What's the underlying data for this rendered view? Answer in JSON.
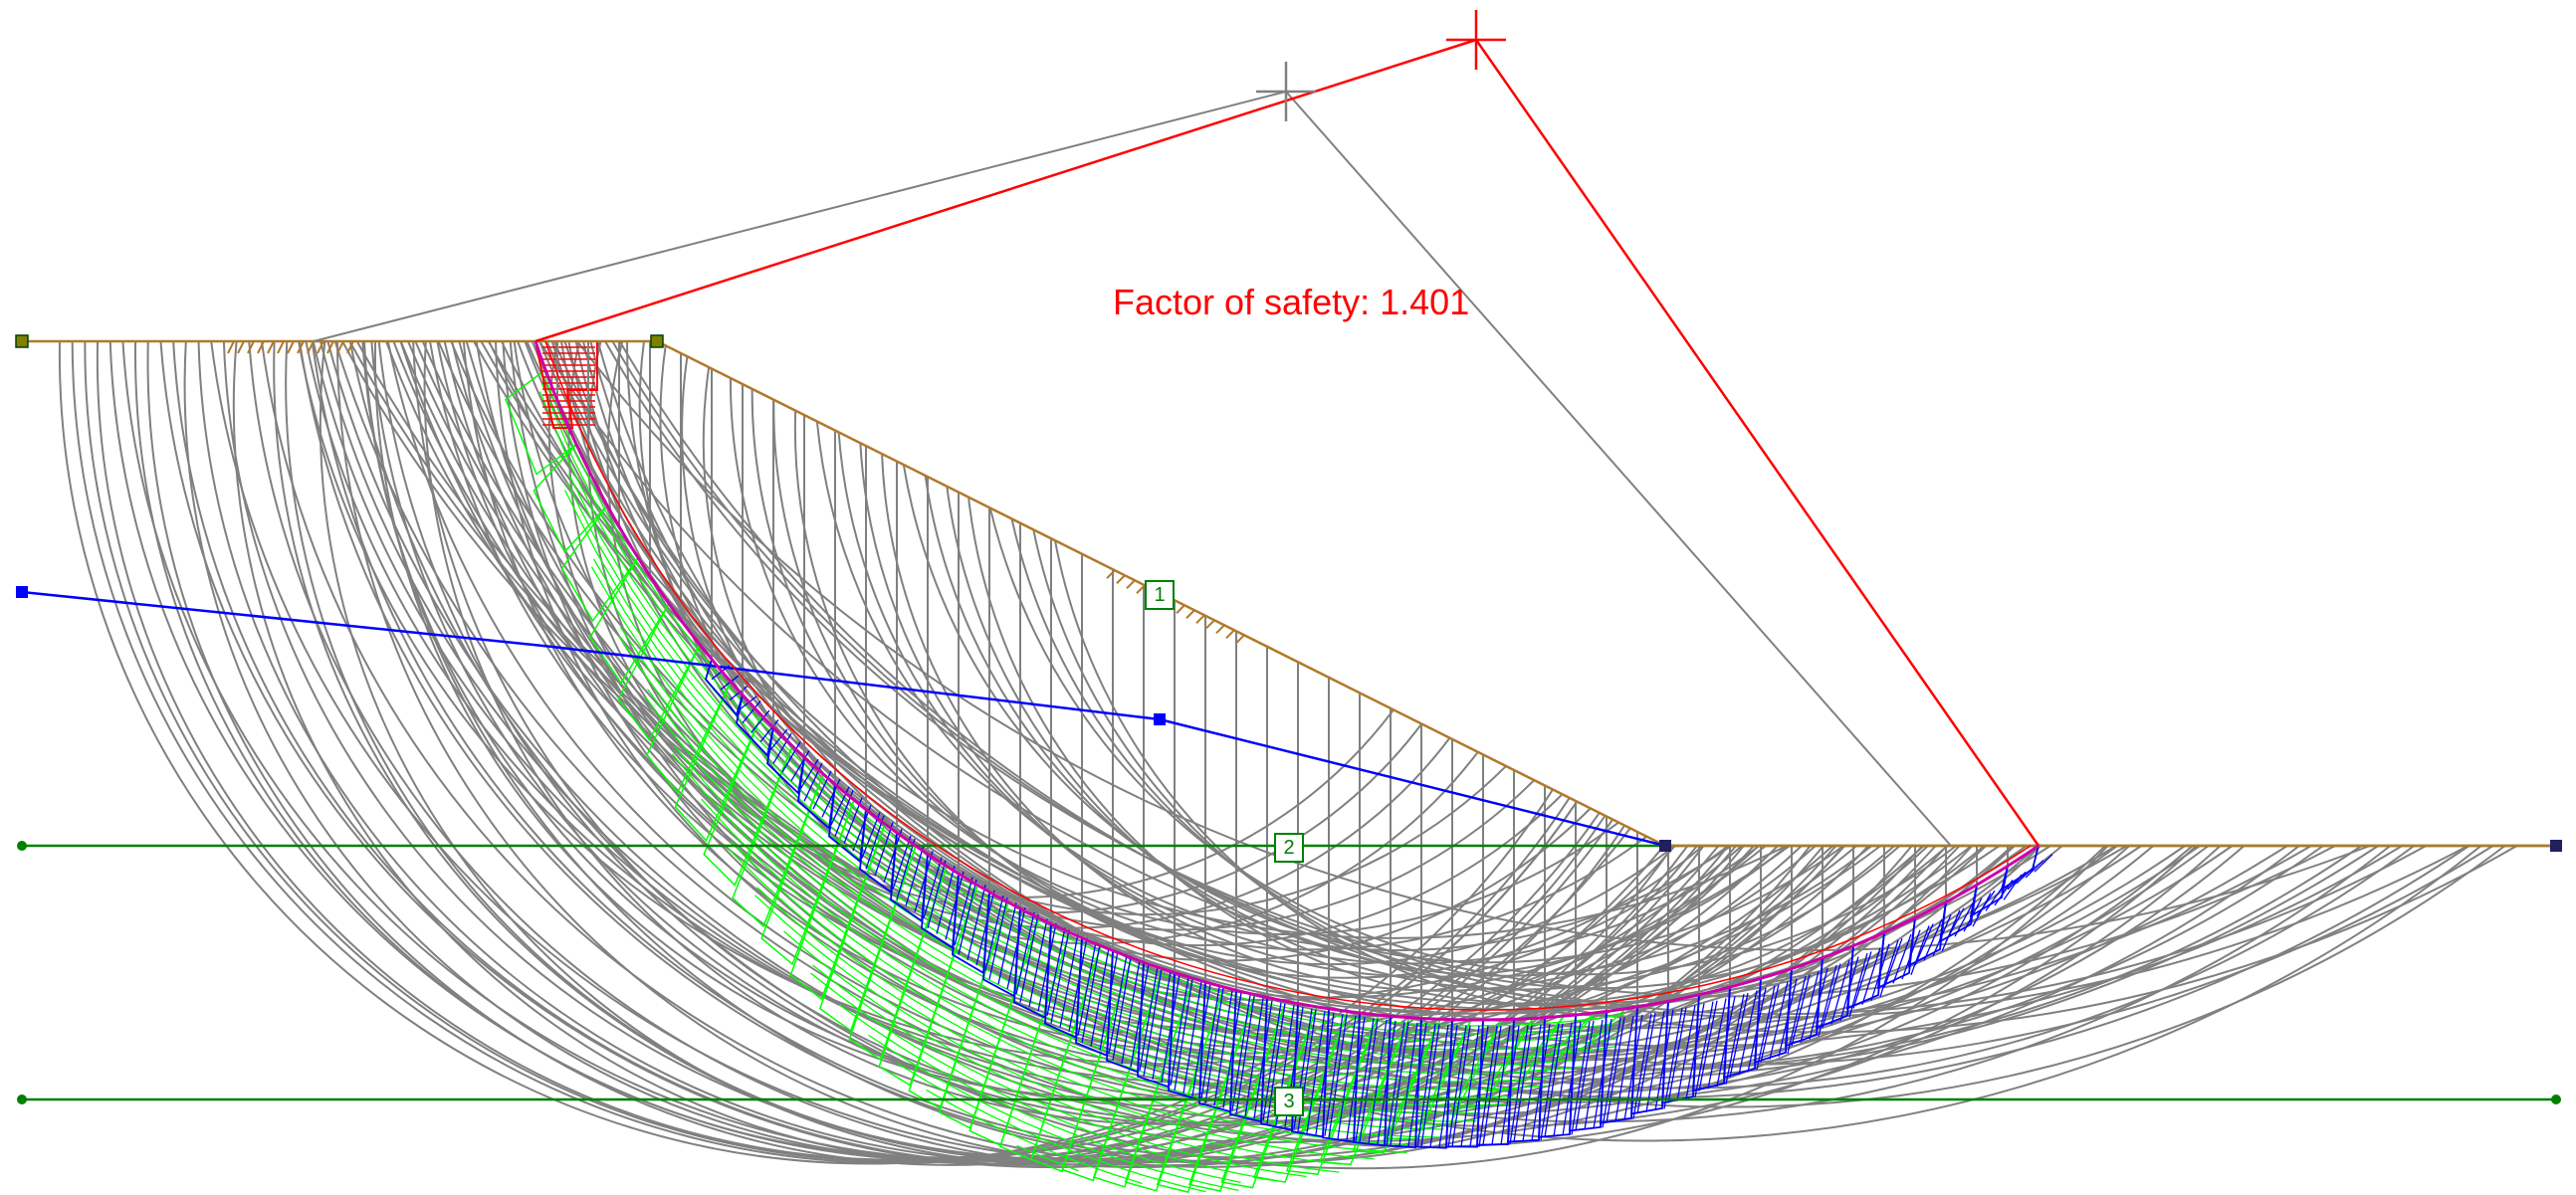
{
  "annotation": {
    "factor_of_safety_label": "Factor of safety:",
    "factor_of_safety_value": "1.401"
  },
  "regions": [
    {
      "label": "1"
    },
    {
      "label": "2"
    },
    {
      "label": "3"
    }
  ],
  "colors": {
    "ground_surface": "#b07a2a",
    "critical_surface": "#ff0000",
    "critical_slip": "#cc00aa",
    "trial_surfaces": "#808080",
    "water_table": "#0000ff",
    "layer_boundary": "#008000",
    "pore_pressure_hatch": "#0000ff",
    "resistance_hatch": "#00ff00",
    "tension_crack_hatch": "#ff0000"
  },
  "icons": {
    "critical_center": "red-cross-icon",
    "trial_center": "gray-cross-icon",
    "vertex": "square-node-icon"
  }
}
